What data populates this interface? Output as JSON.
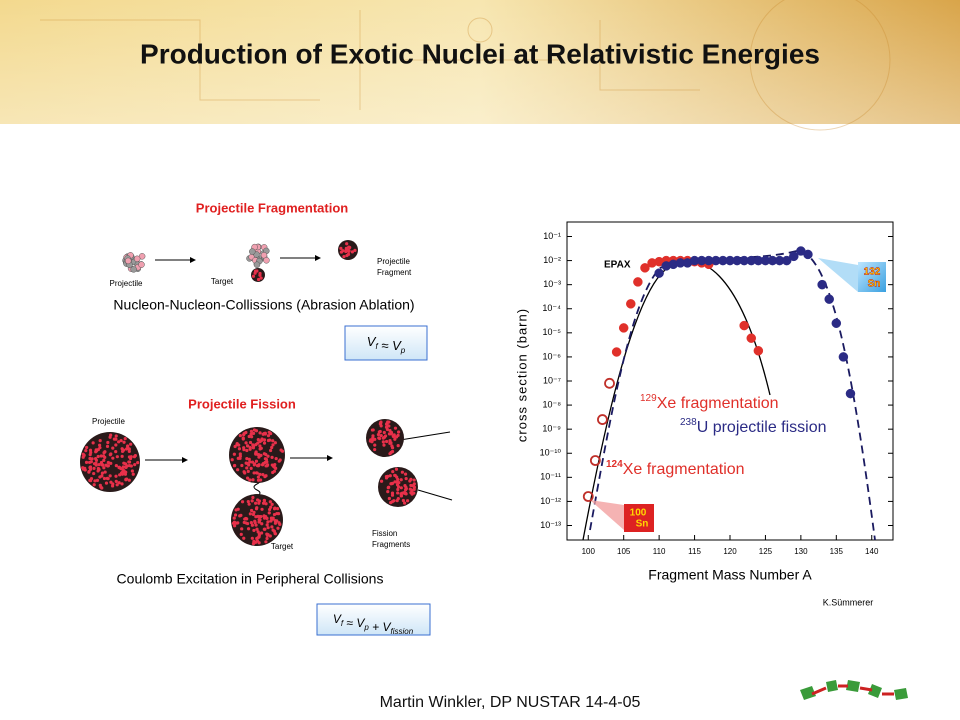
{
  "header": {
    "title": "Production of Exotic Nuclei at Relativistic Energies"
  },
  "fragmentation": {
    "heading": "Projectile Fragmentation",
    "projectile": "Projectile",
    "target": "Target",
    "fragment": [
      "Projectile",
      "Fragment"
    ],
    "caption": "Nucleon-Nucleon-Collissions (Abrasion Ablation)",
    "formula": [
      {
        "t": "V",
        "sub": "f"
      },
      {
        "t": " ≈ "
      },
      {
        "t": "V",
        "sub": "p"
      }
    ]
  },
  "fission": {
    "heading": "Projectile Fission",
    "projectile": "Projectile",
    "target": "Target",
    "fragments": [
      "Fission",
      "Fragments"
    ],
    "caption": "Coulomb Excitation in Peripheral Collisions",
    "formula": [
      {
        "t": "V",
        "sub": "f"
      },
      {
        "t": " ≈ "
      },
      {
        "t": "V",
        "sub": "p"
      },
      {
        "t": " + "
      },
      {
        "t": "V",
        "sub": "fission"
      }
    ]
  },
  "chart_data": {
    "type": "scatter",
    "xlabel": "Fragment Mass Number A",
    "ylabel": "cross section (barn)",
    "log_y": true,
    "xlim": [
      97,
      143
    ],
    "xticks": [
      100,
      105,
      110,
      115,
      120,
      125,
      130,
      135,
      140
    ],
    "ylim": [
      2.5e-14,
      0.4
    ],
    "yticks": [
      {
        "value": 0.1,
        "label": "10⁻¹"
      },
      {
        "value": 0.01,
        "label": "10⁻²"
      },
      {
        "value": 0.001,
        "label": "10⁻³"
      },
      {
        "value": 0.0001,
        "label": "10⁻⁴"
      },
      {
        "value": 1e-05,
        "label": "10⁻⁵"
      },
      {
        "value": 1e-06,
        "label": "10⁻⁶"
      },
      {
        "value": 1e-07,
        "label": "10⁻⁷"
      },
      {
        "value": 1e-08,
        "label": "10⁻⁸"
      },
      {
        "value": 1e-09,
        "label": "10⁻⁹"
      },
      {
        "value": 1e-10,
        "label": "10⁻¹⁰"
      },
      {
        "value": 1e-11,
        "label": "10⁻¹¹"
      },
      {
        "value": 1e-12,
        "label": "10⁻¹²"
      },
      {
        "value": 1e-13,
        "label": "10⁻¹³"
      }
    ],
    "series": [
      {
        "name": "Xe fragmentation",
        "mass": "129",
        "color": "#e0302a",
        "filled": true,
        "x": [
          104,
          105,
          106,
          107,
          108,
          109,
          110,
          111,
          112,
          113,
          114,
          115,
          116,
          117,
          122,
          123,
          124
        ],
        "values": [
          1.6e-06,
          1.6e-05,
          0.00016,
          0.0013,
          0.005,
          0.008,
          0.009,
          0.01,
          0.01,
          0.01,
          0.01,
          0.009,
          0.008,
          0.007,
          2e-05,
          6e-06,
          1.8e-06
        ]
      },
      {
        "name": "U projectile fission",
        "mass": "238",
        "color": "#2b2b85",
        "filled": true,
        "x": [
          110,
          111,
          112,
          113,
          114,
          115,
          116,
          117,
          118,
          119,
          120,
          121,
          122,
          123,
          124,
          125,
          126,
          127,
          128,
          129,
          130,
          131,
          133,
          134,
          135,
          136,
          137
        ],
        "values": [
          0.003,
          0.006,
          0.007,
          0.008,
          0.008,
          0.01,
          0.01,
          0.01,
          0.01,
          0.01,
          0.01,
          0.01,
          0.01,
          0.01,
          0.01,
          0.01,
          0.01,
          0.01,
          0.01,
          0.015,
          0.025,
          0.018,
          0.001,
          0.00025,
          2.5e-05,
          1e-06,
          3e-08
        ]
      },
      {
        "name": "Xe fragmentation",
        "mass": "124",
        "color": "#c0302a",
        "filled": false,
        "x": [
          100,
          101,
          102,
          103
        ],
        "values": [
          1.6e-12,
          5e-11,
          2.5e-09,
          8e-08
        ]
      }
    ],
    "annotations": {
      "epax": "EPAX",
      "sn132": [
        "132",
        "Sn"
      ],
      "sn100": [
        "100",
        "Sn"
      ],
      "credit": "K.Sümmerer"
    }
  },
  "footer": "Martin Winkler, DP NUSTAR 14-4-05"
}
